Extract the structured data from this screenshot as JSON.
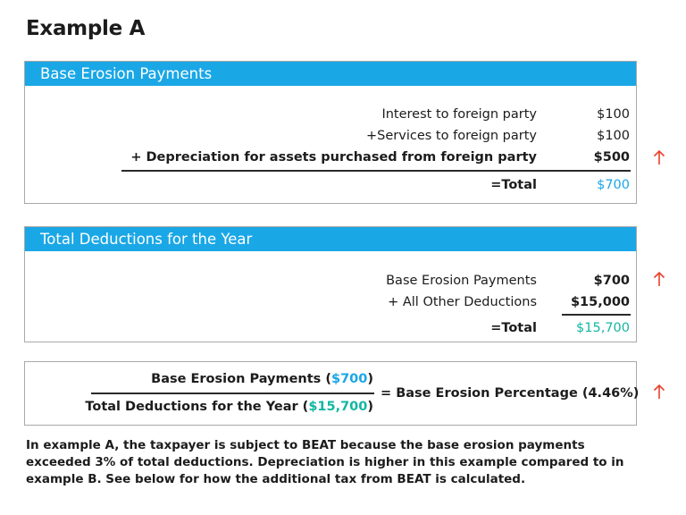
{
  "title": "Example A",
  "panel1": {
    "header": "Base Erosion Payments",
    "rows": [
      {
        "label": "Interest to foreign party",
        "amount": "$100"
      },
      {
        "label": "+Services to foreign party",
        "amount": "$100"
      },
      {
        "label": "+ Depreciation for assets purchased from foreign party",
        "amount": "$500"
      }
    ],
    "total_label": "=Total",
    "total_amount": "$700"
  },
  "panel2": {
    "header": "Total Deductions for the Year",
    "rows": [
      {
        "label": "Base Erosion Payments",
        "amount": "$700"
      },
      {
        "label": "+ All Other Deductions",
        "amount": "$15,000"
      }
    ],
    "total_label": "=Total",
    "total_amount": "$15,700"
  },
  "panel3": {
    "numerator_text": "Base Erosion Payments (",
    "numerator_value": "$700",
    "numerator_close": ")",
    "denominator_text": "Total Deductions for the Year (",
    "denominator_value": "$15,700",
    "denominator_close": ")",
    "result": "= Base Erosion Percentage (4.46%)"
  },
  "note": "In example A, the taxpayer is subject to BEAT because the base erosion payments exceeded 3% of total deductions. Depreciation is higher in this example compared to in example B. See below for how the additional tax from BEAT is calculated.",
  "colors": {
    "header_blue": "#1aa7e6",
    "total_teal": "#13b7a2",
    "arrow_red": "#e8412c"
  },
  "icons": {
    "increase": "arrow-up-icon"
  }
}
